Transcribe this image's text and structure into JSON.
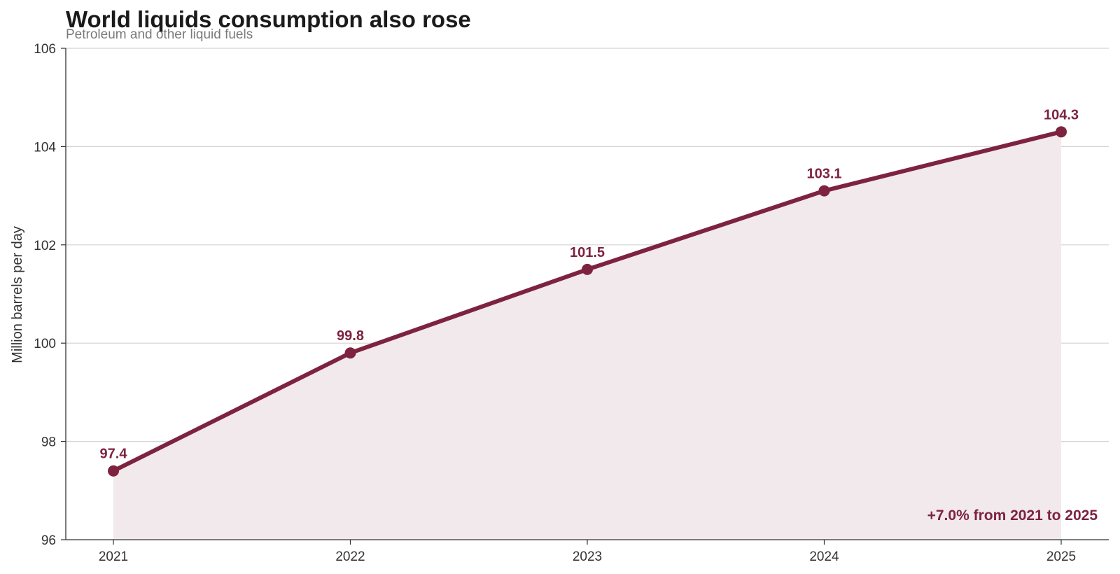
{
  "chart_data": {
    "type": "area",
    "title": "World liquids consumption also rose",
    "subtitle": "Petroleum and other liquid fuels",
    "xlabel": "",
    "ylabel": "Million barrels per day",
    "x": [
      "2021",
      "2022",
      "2023",
      "2024",
      "2025"
    ],
    "series": [
      {
        "values": [
          97.4,
          99.8,
          101.5,
          103.1,
          104.3
        ],
        "labels": [
          "97.4",
          "99.8",
          "101.5",
          "103.1",
          "104.3"
        ]
      }
    ],
    "ylim": [
      96,
      106
    ],
    "yticks": [
      96,
      98,
      100,
      102,
      104,
      106
    ],
    "ytick_labels": [
      "96",
      "98",
      "100",
      "102",
      "104",
      "106"
    ],
    "grid": "horizontal",
    "legend": "none",
    "annotation": "+7.0% from 2021 to 2025",
    "colors": {
      "line": "#7d2340",
      "fill": "#f2e9ec",
      "annotation": "#7d2340"
    }
  }
}
